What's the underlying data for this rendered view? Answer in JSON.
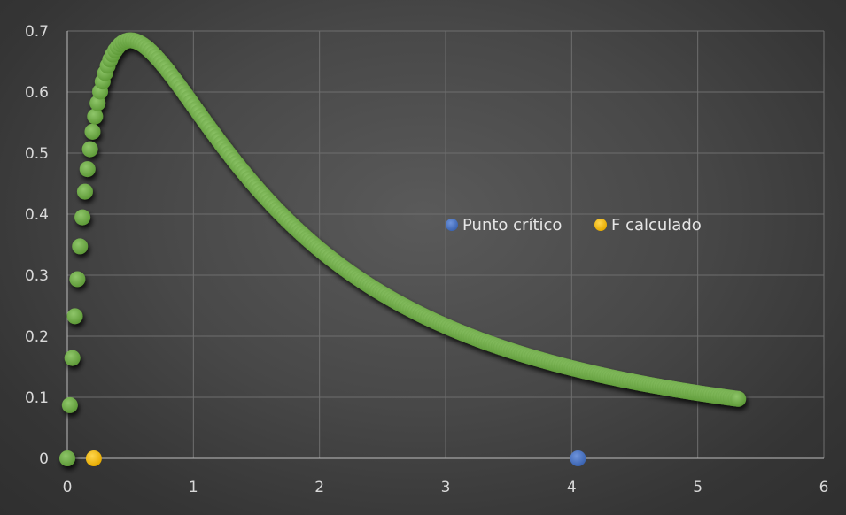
{
  "chart_data": {
    "type": "scatter",
    "title": "",
    "xlabel": "",
    "ylabel": "",
    "xlim": [
      0,
      6
    ],
    "ylim": [
      0,
      0.7
    ],
    "x_ticks": [
      "0",
      "1",
      "2",
      "3",
      "4",
      "5",
      "6"
    ],
    "y_ticks": [
      "0",
      "0.1",
      "0.2",
      "0.3",
      "0.4",
      "0.5",
      "0.6",
      "0.7"
    ],
    "grid": true,
    "legend_position": "center-right",
    "colors": {
      "curve": "#70ad47",
      "critical": "#4472c4",
      "calculated": "#ffc000"
    },
    "distribution_curve": {
      "x_start": 0.0,
      "x_end": 5.33,
      "x_step": 0.02,
      "peak": {
        "x": 0.38,
        "y": 0.65
      }
    },
    "series": [
      {
        "name": "Punto crítico",
        "points": [
          {
            "x": 4.05,
            "y": 0
          }
        ]
      },
      {
        "name": "F calculado",
        "points": [
          {
            "x": 0.21,
            "y": 0
          }
        ]
      }
    ]
  }
}
